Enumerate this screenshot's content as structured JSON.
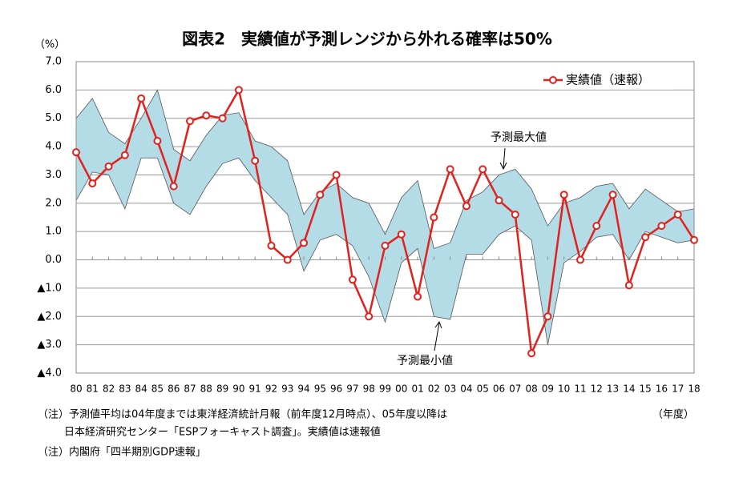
{
  "chart_data": {
    "type": "line",
    "title": "図表2　実績値が予測レンジから外れる確率は50%",
    "y_unit_label": "（%）",
    "x_unit_label": "（年度）",
    "categories": [
      "80",
      "81",
      "82",
      "83",
      "84",
      "85",
      "86",
      "87",
      "88",
      "89",
      "90",
      "91",
      "92",
      "93",
      "94",
      "95",
      "96",
      "97",
      "98",
      "99",
      "00",
      "01",
      "02",
      "03",
      "04",
      "05",
      "06",
      "07",
      "08",
      "09",
      "10",
      "11",
      "12",
      "13",
      "14",
      "15",
      "16",
      "17",
      "18"
    ],
    "series": [
      {
        "name": "実績値（速報）",
        "color": "#e3211c",
        "values": [
          3.8,
          2.7,
          3.3,
          3.7,
          5.7,
          4.2,
          2.6,
          4.9,
          5.1,
          5.0,
          6.0,
          3.5,
          0.5,
          0.0,
          0.6,
          2.3,
          3.0,
          -0.7,
          -2.0,
          0.5,
          0.9,
          -1.3,
          1.5,
          3.2,
          1.9,
          3.2,
          2.1,
          1.6,
          -3.3,
          -2.0,
          2.3,
          0.0,
          1.2,
          2.3,
          -0.9,
          0.8,
          1.2,
          1.6,
          0.7
        ]
      }
    ],
    "range": {
      "color": "#b3dce7",
      "upper_name": "予測最大値",
      "upper": [
        5.0,
        5.7,
        4.5,
        4.1,
        5.0,
        6.0,
        3.9,
        3.5,
        4.4,
        5.1,
        5.2,
        4.2,
        4.0,
        3.5,
        1.6,
        2.4,
        2.7,
        2.2,
        2.0,
        0.9,
        2.2,
        2.8,
        0.4,
        0.6,
        2.1,
        2.4,
        3.0,
        3.2,
        2.5,
        1.2,
        2.0,
        2.2,
        2.6,
        2.7,
        1.8,
        2.5,
        2.1,
        1.7,
        1.8
      ],
      "lower_name": "予測最小値",
      "lower": [
        2.1,
        3.1,
        3.0,
        1.8,
        3.6,
        3.6,
        2.0,
        1.6,
        2.6,
        3.4,
        3.6,
        2.8,
        2.2,
        1.6,
        -0.4,
        0.7,
        0.9,
        0.5,
        -0.6,
        -2.2,
        -0.1,
        0.4,
        -2.0,
        -2.1,
        0.2,
        0.2,
        0.9,
        1.2,
        0.7,
        -3.0,
        -0.1,
        0.3,
        0.8,
        0.9,
        0.0,
        1.0,
        0.8,
        0.6,
        0.7
      ]
    },
    "ylim": [
      -4,
      7
    ],
    "yticks": [
      {
        "value": 7,
        "label": "7.0"
      },
      {
        "value": 6,
        "label": "6.0"
      },
      {
        "value": 5,
        "label": "5.0"
      },
      {
        "value": 4,
        "label": "4.0"
      },
      {
        "value": 3,
        "label": "3.0"
      },
      {
        "value": 2,
        "label": "2.0"
      },
      {
        "value": 1,
        "label": "1.0"
      },
      {
        "value": 0,
        "label": "0.0"
      },
      {
        "value": -1,
        "label": "▲1.0"
      },
      {
        "value": -2,
        "label": "▲2.0"
      },
      {
        "value": -3,
        "label": "▲3.0"
      },
      {
        "value": -4,
        "label": "▲4.0"
      }
    ],
    "grid": true,
    "legend": "top-right",
    "notes": [
      "（注）予測値平均は04年度までは東洋経済統計月報（前年度12月時点）、05年度以降は",
      "日本経済研究センター「ESPフォーキャスト調査」。実績値は速報値",
      "（注）内閣府「四半期別GDP速報」"
    ]
  }
}
